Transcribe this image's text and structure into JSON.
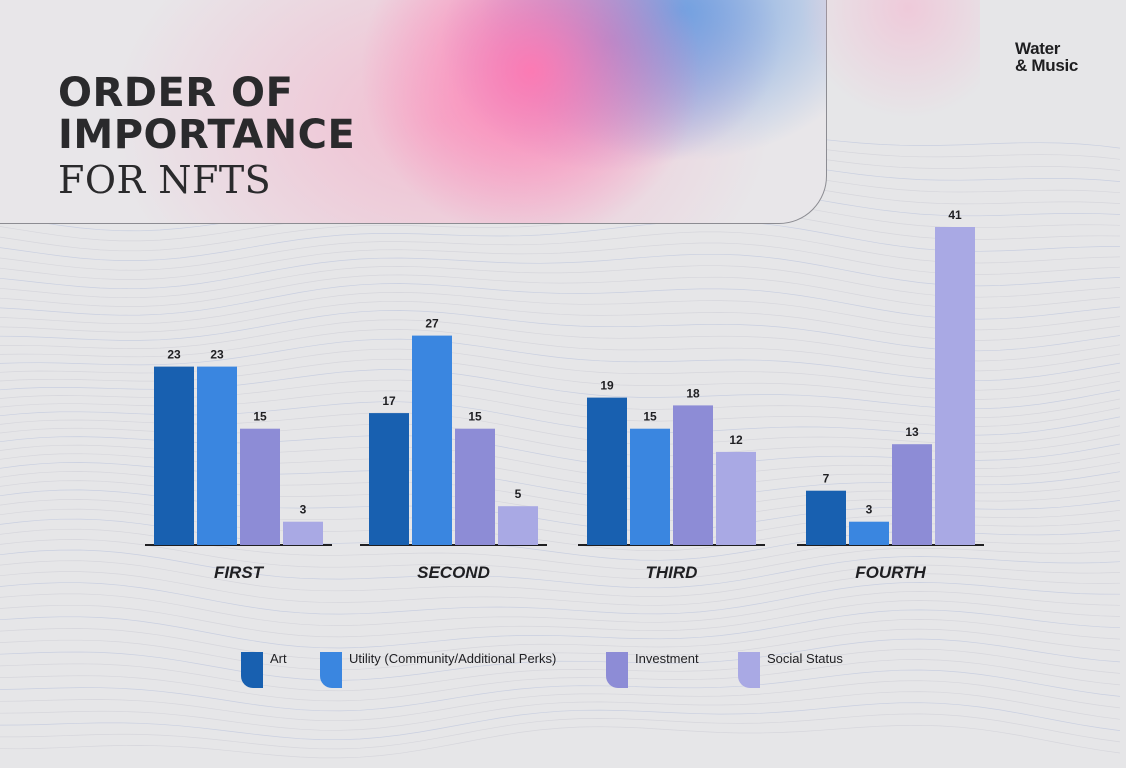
{
  "header": {
    "title_line1": "ORDER OF",
    "title_line2": "IMPORTANCE",
    "title_line3": "FOR NFTS"
  },
  "logo": {
    "line1": "Water",
    "line2": "& Music"
  },
  "chart_data": {
    "type": "bar",
    "categories": [
      "FIRST",
      "SECOND",
      "THIRD",
      "FOURTH"
    ],
    "series": [
      {
        "name": "Art",
        "values": [
          23,
          17,
          19,
          7
        ],
        "color": "#1860b0"
      },
      {
        "name": "Utility (Community/Additional Perks)",
        "values": [
          23,
          27,
          15,
          3
        ],
        "color": "#3a86e0"
      },
      {
        "name": "Investment",
        "values": [
          15,
          15,
          18,
          13
        ],
        "color": "#8d8cd6"
      },
      {
        "name": "Social Status",
        "values": [
          3,
          5,
          12,
          41
        ],
        "color": "#a9a9e4"
      }
    ],
    "title": "ORDER OF IMPORTANCE FOR NFTS",
    "ylim": [
      0,
      41
    ],
    "grid": false,
    "legend_position": "bottom",
    "data_labels": true
  }
}
